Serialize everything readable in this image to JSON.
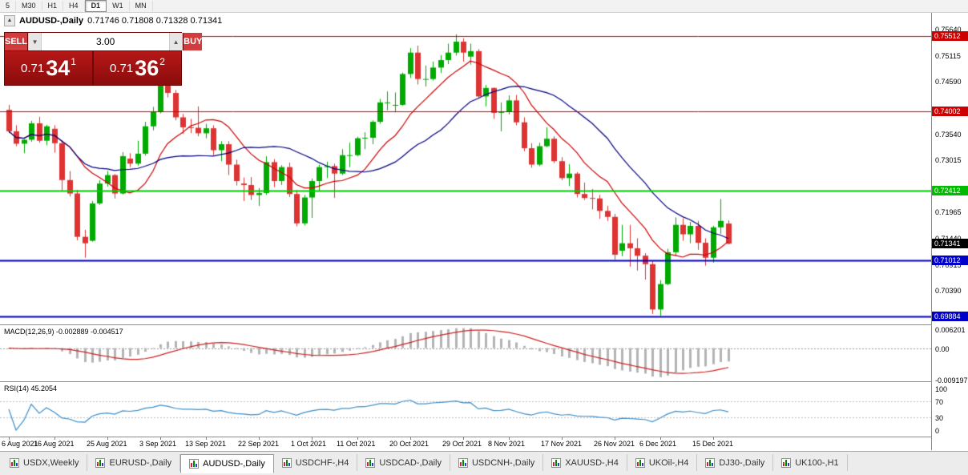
{
  "toolbar": {
    "timeframes": [
      {
        "label": "5",
        "active": false
      },
      {
        "label": "M30",
        "active": false
      },
      {
        "label": "H1",
        "active": false
      },
      {
        "label": "H4",
        "active": false
      },
      {
        "label": "D1",
        "active": true
      },
      {
        "label": "W1",
        "active": false
      },
      {
        "label": "MN",
        "active": false
      }
    ]
  },
  "chart_header": {
    "collapse_icon": "▲",
    "symbol": "AUDUSD-,Daily",
    "ohlc": "0.71746 0.71808 0.71328 0.71341"
  },
  "trade_panel": {
    "sell_label": "SELL",
    "buy_label": "BUY",
    "volume": "3.00",
    "volume_down_glyph": "▼",
    "volume_up_glyph": "▲",
    "sell_price_prefix": "0.71",
    "sell_price_big": "34",
    "sell_price_sup": "1",
    "buy_price_prefix": "0.71",
    "buy_price_big": "36",
    "buy_price_sup": "2"
  },
  "indicators": {
    "macd_label": "MACD(12,26,9) -0.002889 -0.004517",
    "rsi_label": "RSI(14) 45.2054"
  },
  "axis": {
    "price_labels": [
      "0.75640",
      "0.75115",
      "0.74590",
      "0.73540",
      "0.73015",
      "0.71965",
      "0.71440",
      "0.70915",
      "0.70390"
    ],
    "price_tags": [
      {
        "value": 0.75512,
        "label": "0.75512",
        "color": "#CC0000"
      },
      {
        "value": 0.74002,
        "label": "0.74002",
        "color": "#CC0000"
      },
      {
        "value": 0.72412,
        "label": "0.72412",
        "color": "#00BB00"
      },
      {
        "value": 0.71341,
        "label": "0.71341",
        "color": "#000000"
      },
      {
        "value": 0.71012,
        "label": "0.71012",
        "color": "#0000C8"
      },
      {
        "value": 0.69884,
        "label": "0.69884",
        "color": "#0000C8"
      }
    ],
    "macd_labels": [
      {
        "value": 0.006201,
        "label": "0.006201"
      },
      {
        "value": 0,
        "label": "0.00"
      },
      {
        "value": -0.009197,
        "label": "-0.009197"
      }
    ],
    "rsi_labels": [
      {
        "value": 100,
        "label": "100"
      },
      {
        "value": 70,
        "label": "70"
      },
      {
        "value": 30,
        "label": "30"
      },
      {
        "value": 0,
        "label": "0"
      }
    ]
  },
  "tabs": [
    {
      "label": "USDX,Weekly",
      "active": false
    },
    {
      "label": "EURUSD-,Daily",
      "active": false
    },
    {
      "label": "AUDUSD-,Daily",
      "active": true
    },
    {
      "label": "USDCHF-,H4",
      "active": false
    },
    {
      "label": "USDCAD-,Daily",
      "active": false
    },
    {
      "label": "USDCNH-,Daily",
      "active": false
    },
    {
      "label": "XAUUSD-,H4",
      "active": false
    },
    {
      "label": "UKOil-,H4",
      "active": false
    },
    {
      "label": "DJ30-,Daily",
      "active": false
    },
    {
      "label": "UK100-,H1",
      "active": false
    }
  ],
  "chart_data": {
    "type": "candlestick",
    "title": "AUDUSD-,Daily",
    "current_price": 0.71341,
    "price_range": [
      0.6972,
      0.7598
    ],
    "colors": {
      "up": "#00AA00",
      "down": "#DD3333",
      "background": "#FFFFFF"
    },
    "ma": {
      "fast": {
        "period": 10,
        "color": "#CC0000"
      },
      "slow": {
        "period": 21,
        "color": "#000080"
      }
    },
    "levels": [
      {
        "value": 0.75512,
        "color": "#CC0000",
        "width": 1
      },
      {
        "value": 0.74002,
        "color": "#CC0000",
        "width": 1
      },
      {
        "value": 0.72412,
        "color": "#00CC00",
        "width": 2
      },
      {
        "value": 0.71012,
        "color": "#0000C8",
        "width": 2
      },
      {
        "value": 0.69884,
        "color": "#0000C8",
        "width": 2
      }
    ],
    "date_ticks": [
      {
        "i": 0,
        "label": "6 Aug 2021"
      },
      {
        "i": 6,
        "label": "16 Aug 2021"
      },
      {
        "i": 13,
        "label": "25 Aug 2021"
      },
      {
        "i": 20,
        "label": "3 Sep 2021"
      },
      {
        "i": 26,
        "label": "13 Sep 2021"
      },
      {
        "i": 33,
        "label": "22 Sep 2021"
      },
      {
        "i": 40,
        "label": "1 Oct 2021"
      },
      {
        "i": 46,
        "label": "11 Oct 2021"
      },
      {
        "i": 53,
        "label": "20 Oct 2021"
      },
      {
        "i": 60,
        "label": "29 Oct 2021"
      },
      {
        "i": 66,
        "label": "8 Nov 2021"
      },
      {
        "i": 73,
        "label": "17 Nov 2021"
      },
      {
        "i": 80,
        "label": "26 Nov 2021"
      },
      {
        "i": 86,
        "label": "6 Dec 2021"
      },
      {
        "i": 93,
        "label": "15 Dec 2021"
      }
    ],
    "candles": [
      [
        0.7403,
        0.7413,
        0.7356,
        0.736
      ],
      [
        0.736,
        0.7372,
        0.733,
        0.7335
      ],
      [
        0.7335,
        0.7344,
        0.7316,
        0.7343
      ],
      [
        0.7343,
        0.7381,
        0.7339,
        0.7376
      ],
      [
        0.7376,
        0.7389,
        0.7337,
        0.7341
      ],
      [
        0.7341,
        0.7373,
        0.7332,
        0.737
      ],
      [
        0.7365,
        0.7372,
        0.7317,
        0.7336
      ],
      [
        0.7336,
        0.7342,
        0.7241,
        0.7262
      ],
      [
        0.7262,
        0.728,
        0.7229,
        0.7235
      ],
      [
        0.7235,
        0.7242,
        0.7141,
        0.7148
      ],
      [
        0.7148,
        0.7162,
        0.7106,
        0.7135
      ],
      [
        0.714,
        0.722,
        0.7138,
        0.7215
      ],
      [
        0.7215,
        0.7262,
        0.7212,
        0.7255
      ],
      [
        0.7255,
        0.728,
        0.7249,
        0.7272
      ],
      [
        0.7272,
        0.7274,
        0.7225,
        0.7235
      ],
      [
        0.7235,
        0.7318,
        0.7233,
        0.731
      ],
      [
        0.7305,
        0.7316,
        0.7288,
        0.7295
      ],
      [
        0.7295,
        0.7341,
        0.7291,
        0.7315
      ],
      [
        0.7315,
        0.7379,
        0.7311,
        0.737
      ],
      [
        0.737,
        0.7409,
        0.7362,
        0.74
      ],
      [
        0.74,
        0.7478,
        0.7396,
        0.746
      ],
      [
        0.7455,
        0.7462,
        0.7428,
        0.7437
      ],
      [
        0.7437,
        0.7443,
        0.7382,
        0.7388
      ],
      [
        0.7388,
        0.7395,
        0.7355,
        0.7368
      ],
      [
        0.7368,
        0.7385,
        0.7356,
        0.7367
      ],
      [
        0.7367,
        0.741,
        0.735,
        0.7356
      ],
      [
        0.7356,
        0.7375,
        0.7346,
        0.7366
      ],
      [
        0.7366,
        0.7372,
        0.7312,
        0.7322
      ],
      [
        0.7322,
        0.734,
        0.73,
        0.7334
      ],
      [
        0.7334,
        0.734,
        0.7272,
        0.7293
      ],
      [
        0.7293,
        0.7303,
        0.7251,
        0.726
      ],
      [
        0.7255,
        0.7267,
        0.722,
        0.7252
      ],
      [
        0.7252,
        0.7268,
        0.7222,
        0.7232
      ],
      [
        0.7232,
        0.7246,
        0.721,
        0.7236
      ],
      [
        0.7236,
        0.731,
        0.7232,
        0.7298
      ],
      [
        0.7298,
        0.7304,
        0.7248,
        0.726
      ],
      [
        0.726,
        0.7292,
        0.7252,
        0.7288
      ],
      [
        0.7288,
        0.7297,
        0.7228,
        0.7234
      ],
      [
        0.7234,
        0.7242,
        0.7169,
        0.7175
      ],
      [
        0.7175,
        0.7232,
        0.7171,
        0.7227
      ],
      [
        0.7227,
        0.7265,
        0.7186,
        0.726
      ],
      [
        0.726,
        0.7293,
        0.724,
        0.7288
      ],
      [
        0.7288,
        0.7299,
        0.7266,
        0.729
      ],
      [
        0.729,
        0.7295,
        0.7226,
        0.7275
      ],
      [
        0.7275,
        0.7324,
        0.7272,
        0.7312
      ],
      [
        0.7312,
        0.7337,
        0.7288,
        0.7312
      ],
      [
        0.7312,
        0.7349,
        0.731,
        0.7346
      ],
      [
        0.7346,
        0.7358,
        0.7324,
        0.7347
      ],
      [
        0.7347,
        0.7382,
        0.7334,
        0.7379
      ],
      [
        0.7379,
        0.7425,
        0.7375,
        0.7418
      ],
      [
        0.7418,
        0.744,
        0.7402,
        0.7418
      ],
      [
        0.7413,
        0.7438,
        0.7398,
        0.7413
      ],
      [
        0.7413,
        0.7478,
        0.7411,
        0.7475
      ],
      [
        0.7475,
        0.7527,
        0.7467,
        0.7518
      ],
      [
        0.7518,
        0.7532,
        0.7454,
        0.7465
      ],
      [
        0.7465,
        0.7492,
        0.745,
        0.7465
      ],
      [
        0.7465,
        0.75,
        0.7462,
        0.7488
      ],
      [
        0.7488,
        0.7513,
        0.7477,
        0.7503
      ],
      [
        0.7503,
        0.7536,
        0.7495,
        0.7518
      ],
      [
        0.7518,
        0.7555,
        0.7512,
        0.754
      ],
      [
        0.754,
        0.7547,
        0.75,
        0.7518
      ],
      [
        0.751,
        0.7536,
        0.7494,
        0.7521
      ],
      [
        0.7521,
        0.7525,
        0.7428,
        0.743
      ],
      [
        0.743,
        0.7453,
        0.741,
        0.7447
      ],
      [
        0.7447,
        0.7448,
        0.7385,
        0.7397
      ],
      [
        0.7397,
        0.7418,
        0.736,
        0.74
      ],
      [
        0.74,
        0.7432,
        0.7394,
        0.7422
      ],
      [
        0.7422,
        0.7433,
        0.7372,
        0.7378
      ],
      [
        0.7378,
        0.7388,
        0.732,
        0.7326
      ],
      [
        0.7326,
        0.7336,
        0.7287,
        0.7293
      ],
      [
        0.7293,
        0.7337,
        0.729,
        0.733
      ],
      [
        0.733,
        0.7368,
        0.7328,
        0.7345
      ],
      [
        0.7345,
        0.735,
        0.7296,
        0.73
      ],
      [
        0.73,
        0.7308,
        0.7262,
        0.7266
      ],
      [
        0.7266,
        0.7294,
        0.725,
        0.7275
      ],
      [
        0.7275,
        0.7278,
        0.7227,
        0.7234
      ],
      [
        0.7234,
        0.7257,
        0.7222,
        0.7226
      ],
      [
        0.7226,
        0.7244,
        0.7203,
        0.7225
      ],
      [
        0.7225,
        0.7232,
        0.7184,
        0.72
      ],
      [
        0.72,
        0.721,
        0.718,
        0.7188
      ],
      [
        0.7188,
        0.7194,
        0.7102,
        0.7112
      ],
      [
        0.712,
        0.7172,
        0.7109,
        0.7135
      ],
      [
        0.7135,
        0.7172,
        0.7088,
        0.7125
      ],
      [
        0.7125,
        0.7145,
        0.708,
        0.711
      ],
      [
        0.711,
        0.7115,
        0.7062,
        0.7093
      ],
      [
        0.7093,
        0.71,
        0.6993,
        0.7002
      ],
      [
        0.7002,
        0.7061,
        0.6989,
        0.7053
      ],
      [
        0.7053,
        0.7124,
        0.7051,
        0.7117
      ],
      [
        0.7117,
        0.7187,
        0.711,
        0.7172
      ],
      [
        0.7172,
        0.7185,
        0.714,
        0.7153
      ],
      [
        0.7153,
        0.7178,
        0.7135,
        0.717
      ],
      [
        0.717,
        0.718,
        0.7122,
        0.7136
      ],
      [
        0.7136,
        0.7145,
        0.709,
        0.7106
      ],
      [
        0.7106,
        0.717,
        0.7096,
        0.7167
      ],
      [
        0.7167,
        0.7224,
        0.7154,
        0.718
      ],
      [
        0.71746,
        0.71808,
        0.71328,
        0.71341
      ]
    ],
    "macd": {
      "label": "MACD(12,26,9) -0.002889 -0.004517",
      "params": "12,26,9",
      "value": -0.002889,
      "signal_value": -0.004517,
      "scale_max": 0.006201,
      "scale_min": -0.009197,
      "histogram_color": "#B4B4B4",
      "signal_color": "#CC2222"
    },
    "rsi": {
      "label": "RSI(14) 45.2054",
      "period": 14,
      "value": 45.2054,
      "scale": [
        0,
        100
      ],
      "levels": [
        30,
        70
      ],
      "line_color": "#3E8EC8"
    }
  }
}
